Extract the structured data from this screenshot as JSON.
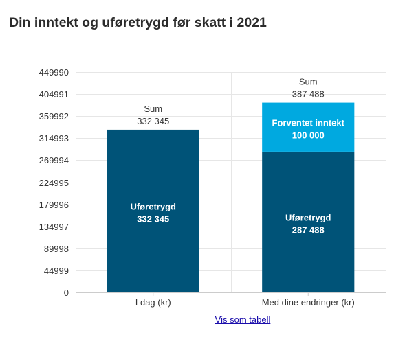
{
  "title": "Din inntekt og uføretrygd før skatt i 2021",
  "link_label": "Vis som tabell",
  "colors": {
    "uforetrygd": "#005378",
    "forventet_inntekt": "#00a9e0",
    "grid": "#e6e6e6",
    "axis": "#cccccc"
  },
  "chart_data": {
    "type": "bar",
    "stacked": true,
    "title": "Din inntekt og uføretrygd før skatt i 2021",
    "categories": [
      "I dag (kr)",
      "Med dine endringer (kr)"
    ],
    "series": [
      {
        "name": "Uføretrygd",
        "values": [
          332345,
          287488
        ],
        "labels": [
          "332 345",
          "287 488"
        ],
        "color": "#005378"
      },
      {
        "name": "Forventet inntekt",
        "values": [
          0,
          100000
        ],
        "labels": [
          "",
          "100 000"
        ],
        "color": "#00a9e0"
      }
    ],
    "totals": {
      "label": "Sum",
      "values": [
        332345,
        387488
      ],
      "labels": [
        "332 345",
        "387 488"
      ]
    },
    "ylim": [
      0,
      449990
    ],
    "yticks": [
      0,
      44999,
      89998,
      134997,
      179996,
      224995,
      269994,
      314993,
      359992,
      404991,
      449990
    ],
    "grid": true,
    "legend": "none"
  }
}
